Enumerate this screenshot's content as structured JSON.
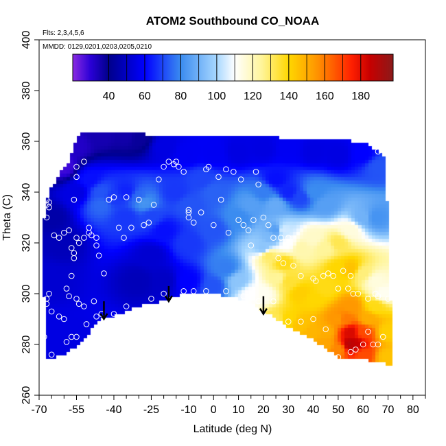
{
  "chart_data": {
    "type": "heatmap",
    "title": "ATOM2 Southbound CO_NOAA",
    "annotations": {
      "flights": "Flts: 2,3,4,5,6",
      "dates": "MMDD: 0129,0201,0203,0205,0210"
    },
    "xlabel": "Latitude (deg N)",
    "ylabel": "Theta (C)",
    "xlim": [
      -70,
      85
    ],
    "ylim": [
      260,
      400
    ],
    "x_ticks": [
      -70,
      -55,
      -40,
      -25,
      -10,
      0,
      10,
      20,
      30,
      40,
      50,
      60,
      70,
      80
    ],
    "x_minor_ticks": [
      -65,
      -60,
      -50,
      -45,
      -35,
      -30,
      -20,
      -15,
      -5,
      5,
      15,
      25,
      35,
      45,
      55,
      65,
      75,
      85
    ],
    "y_ticks": [
      260,
      280,
      300,
      320,
      340,
      360,
      380,
      400
    ],
    "colorbar": {
      "range": [
        20,
        198
      ],
      "ticks": [
        40,
        60,
        80,
        100,
        120,
        140,
        160,
        180
      ],
      "stops": [
        {
          "v": 20,
          "c": "#8a2be2"
        },
        {
          "v": 30,
          "c": "#2a00d6"
        },
        {
          "v": 40,
          "c": "#00008b"
        },
        {
          "v": 60,
          "c": "#0000ff"
        },
        {
          "v": 80,
          "c": "#3b8cf0"
        },
        {
          "v": 100,
          "c": "#a8d8ff"
        },
        {
          "v": 110,
          "c": "#ffffff"
        },
        {
          "v": 125,
          "c": "#fff59a"
        },
        {
          "v": 140,
          "c": "#ffd700"
        },
        {
          "v": 155,
          "c": "#ff9800"
        },
        {
          "v": 175,
          "c": "#ff2000"
        },
        {
          "v": 185,
          "c": "#c80000"
        },
        {
          "v": 198,
          "c": "#8b1a1a"
        }
      ]
    },
    "field_boundary": {
      "top": [
        [
          -66,
          340
        ],
        [
          -62,
          347
        ],
        [
          -58,
          352
        ],
        [
          -55,
          361
        ],
        [
          -54,
          363
        ],
        [
          -50,
          364
        ],
        [
          -40,
          364
        ],
        [
          -30,
          364
        ],
        [
          -25,
          362
        ],
        [
          -10,
          362
        ],
        [
          10,
          362
        ],
        [
          25,
          362
        ],
        [
          27,
          361
        ],
        [
          60,
          360
        ],
        [
          66,
          356
        ],
        [
          69,
          354
        ]
      ],
      "right": [
        [
          69,
          354
        ],
        [
          70,
          330
        ],
        [
          71,
          300
        ],
        [
          72,
          272
        ],
        [
          70,
          272
        ]
      ],
      "bottom": [
        [
          70,
          272
        ],
        [
          60,
          274
        ],
        [
          50,
          275
        ],
        [
          45,
          278
        ],
        [
          40,
          282
        ],
        [
          30,
          287
        ],
        [
          25,
          290
        ],
        [
          20,
          293
        ],
        [
          15,
          296
        ],
        [
          10,
          298
        ],
        [
          5,
          299
        ],
        [
          0,
          300
        ],
        [
          -5,
          300
        ],
        [
          -10,
          300
        ],
        [
          -15,
          299
        ],
        [
          -20,
          297
        ],
        [
          -25,
          296
        ],
        [
          -30,
          295
        ],
        [
          -35,
          293
        ],
        [
          -40,
          291
        ],
        [
          -45,
          290
        ],
        [
          -48,
          287
        ],
        [
          -52,
          282
        ],
        [
          -55,
          279
        ],
        [
          -60,
          276
        ],
        [
          -65,
          274
        ],
        [
          -67,
          275
        ]
      ],
      "left": [
        [
          -67,
          275
        ],
        [
          -68,
          300
        ],
        [
          -68,
          330
        ],
        [
          -66,
          340
        ]
      ]
    },
    "field_anchors": [
      [
        -60,
        350,
        28
      ],
      [
        -55,
        358,
        32
      ],
      [
        -45,
        362,
        35
      ],
      [
        -35,
        362,
        36
      ],
      [
        -30,
        361,
        38
      ],
      [
        -20,
        358,
        55
      ],
      [
        -10,
        355,
        58
      ],
      [
        0,
        355,
        58
      ],
      [
        10,
        356,
        55
      ],
      [
        20,
        357,
        55
      ],
      [
        30,
        357,
        58
      ],
      [
        40,
        356,
        55
      ],
      [
        50,
        355,
        55
      ],
      [
        60,
        355,
        60
      ],
      [
        66,
        350,
        72
      ],
      [
        -65,
        330,
        45
      ],
      [
        -60,
        320,
        48
      ],
      [
        -65,
        305,
        52
      ],
      [
        -60,
        285,
        55
      ],
      [
        -65,
        280,
        55
      ],
      [
        -55,
        340,
        55
      ],
      [
        -50,
        345,
        62
      ],
      [
        -45,
        340,
        72
      ],
      [
        -45,
        335,
        75
      ],
      [
        -40,
        338,
        68
      ],
      [
        -35,
        340,
        65
      ],
      [
        -35,
        330,
        68
      ],
      [
        -30,
        338,
        75
      ],
      [
        -28,
        336,
        82
      ],
      [
        -25,
        330,
        70
      ],
      [
        -20,
        325,
        62
      ],
      [
        -25,
        315,
        52
      ],
      [
        -30,
        305,
        48
      ],
      [
        -20,
        305,
        50
      ],
      [
        -15,
        340,
        68
      ],
      [
        -10,
        335,
        72
      ],
      [
        -10,
        320,
        68
      ],
      [
        -5,
        345,
        70
      ],
      [
        0,
        340,
        74
      ],
      [
        0,
        325,
        72
      ],
      [
        5,
        310,
        78
      ],
      [
        0,
        303,
        72
      ],
      [
        -10,
        305,
        60
      ],
      [
        10,
        330,
        80
      ],
      [
        15,
        335,
        85
      ],
      [
        20,
        340,
        78
      ],
      [
        25,
        335,
        88
      ],
      [
        25,
        345,
        62
      ],
      [
        30,
        340,
        65
      ],
      [
        35,
        338,
        70
      ],
      [
        40,
        340,
        80
      ],
      [
        45,
        335,
        85
      ],
      [
        10,
        305,
        95
      ],
      [
        15,
        300,
        110
      ],
      [
        20,
        300,
        112
      ],
      [
        20,
        318,
        95
      ],
      [
        23,
        322,
        92
      ],
      [
        25,
        325,
        85
      ],
      [
        28,
        325,
        105
      ],
      [
        22,
        315,
        130
      ],
      [
        28,
        312,
        138
      ],
      [
        26,
        306,
        125
      ],
      [
        30,
        320,
        110
      ],
      [
        35,
        318,
        122
      ],
      [
        40,
        322,
        118
      ],
      [
        45,
        318,
        125
      ],
      [
        50,
        320,
        132
      ],
      [
        55,
        325,
        115
      ],
      [
        60,
        330,
        90
      ],
      [
        65,
        330,
        82
      ],
      [
        30,
        305,
        135
      ],
      [
        35,
        300,
        142
      ],
      [
        40,
        298,
        140
      ],
      [
        45,
        302,
        138
      ],
      [
        50,
        310,
        140
      ],
      [
        55,
        310,
        145
      ],
      [
        60,
        308,
        128
      ],
      [
        65,
        305,
        115
      ],
      [
        68,
        300,
        112
      ],
      [
        25,
        290,
        132
      ],
      [
        30,
        290,
        140
      ],
      [
        35,
        288,
        145
      ],
      [
        40,
        285,
        148
      ],
      [
        45,
        285,
        150
      ],
      [
        50,
        290,
        155
      ],
      [
        53,
        290,
        160
      ],
      [
        55,
        285,
        182
      ],
      [
        55,
        280,
        188
      ],
      [
        57,
        280,
        185
      ],
      [
        60,
        285,
        168
      ],
      [
        62,
        290,
        150
      ],
      [
        65,
        295,
        138
      ],
      [
        70,
        285,
        142
      ],
      [
        70,
        275,
        145
      ],
      [
        50,
        278,
        158
      ],
      [
        45,
        280,
        152
      ],
      [
        60,
        276,
        168
      ],
      [
        55,
        295,
        155
      ]
    ],
    "sample_points": [
      [
        -67,
        337
      ],
      [
        -67,
        335
      ],
      [
        -66,
        336
      ],
      [
        -66,
        334
      ],
      [
        -67,
        330
      ],
      [
        -64,
        323
      ],
      [
        -62,
        322
      ],
      [
        -60,
        324
      ],
      [
        -56,
        337
      ],
      [
        -58,
        325
      ],
      [
        -57,
        318
      ],
      [
        -56,
        316
      ],
      [
        -54,
        320
      ],
      [
        -56,
        314
      ],
      [
        -52,
        322
      ],
      [
        -50,
        326
      ],
      [
        -50,
        324
      ],
      [
        -49,
        323
      ],
      [
        -47,
        322
      ],
      [
        -55,
        322
      ],
      [
        -47,
        319
      ],
      [
        -46,
        315
      ],
      [
        -44,
        308
      ],
      [
        -42,
        337
      ],
      [
        -40,
        338
      ],
      [
        -38,
        326
      ],
      [
        -36,
        322
      ],
      [
        -35,
        338
      ],
      [
        -33,
        326
      ],
      [
        -30,
        337
      ],
      [
        -28,
        327
      ],
      [
        -26,
        328
      ],
      [
        -24,
        335
      ],
      [
        -22,
        345
      ],
      [
        -20,
        350
      ],
      [
        -18,
        352
      ],
      [
        -16,
        351
      ],
      [
        -15,
        352
      ],
      [
        -14,
        350
      ],
      [
        -12,
        348
      ],
      [
        -10,
        333
      ],
      [
        -10,
        332
      ],
      [
        -10,
        330
      ],
      [
        -8,
        328
      ],
      [
        -5,
        332
      ],
      [
        -3,
        349
      ],
      [
        -2,
        350
      ],
      [
        0,
        327
      ],
      [
        2,
        346
      ],
      [
        3,
        337
      ],
      [
        5,
        349
      ],
      [
        6,
        324
      ],
      [
        8,
        348
      ],
      [
        10,
        329
      ],
      [
        11,
        345
      ],
      [
        12,
        327
      ],
      [
        14,
        325
      ],
      [
        15,
        319
      ],
      [
        16,
        329
      ],
      [
        17,
        348
      ],
      [
        18,
        343
      ],
      [
        20,
        330
      ],
      [
        22,
        327
      ],
      [
        24,
        322
      ],
      [
        27,
        322
      ],
      [
        30,
        322
      ],
      [
        -55,
        346
      ],
      [
        -52,
        352
      ],
      [
        -55,
        350
      ],
      [
        -57,
        307
      ],
      [
        -59,
        302
      ],
      [
        -58,
        299
      ],
      [
        -55,
        298
      ],
      [
        -54,
        296
      ],
      [
        -52,
        295
      ],
      [
        -48,
        297
      ],
      [
        -60,
        290
      ],
      [
        -62,
        291
      ],
      [
        -65,
        293
      ],
      [
        -67,
        296
      ],
      [
        -67,
        298
      ],
      [
        -66,
        300
      ],
      [
        -45,
        292
      ],
      [
        -40,
        292
      ],
      [
        -35,
        295
      ],
      [
        -25,
        298
      ],
      [
        -20,
        300
      ],
      [
        -12,
        301
      ],
      [
        -8,
        301
      ],
      [
        -3,
        301
      ],
      [
        5,
        301
      ],
      [
        12,
        299
      ],
      [
        18,
        297
      ],
      [
        24,
        297
      ],
      [
        26,
        314
      ],
      [
        28,
        312
      ],
      [
        32,
        311
      ],
      [
        35,
        307
      ],
      [
        40,
        306
      ],
      [
        44,
        307
      ],
      [
        46,
        308
      ],
      [
        48,
        307
      ],
      [
        52,
        309
      ],
      [
        55,
        307
      ],
      [
        56,
        300
      ],
      [
        58,
        300
      ],
      [
        62,
        298
      ],
      [
        65,
        300
      ],
      [
        66,
        299
      ],
      [
        70,
        298
      ],
      [
        30,
        289
      ],
      [
        35,
        289
      ],
      [
        40,
        290
      ],
      [
        45,
        286
      ],
      [
        50,
        275
      ],
      [
        55,
        277
      ],
      [
        57,
        278
      ],
      [
        60,
        280
      ],
      [
        62,
        285
      ],
      [
        64,
        280
      ],
      [
        66,
        280
      ],
      [
        68,
        283
      ],
      [
        41,
        305
      ],
      [
        50,
        302
      ],
      [
        54,
        302
      ],
      [
        66,
        356
      ],
      [
        68,
        357
      ],
      [
        -68,
        283
      ],
      [
        -65,
        276
      ],
      [
        -59,
        281
      ],
      [
        -57,
        283
      ],
      [
        -55,
        283
      ],
      [
        -51,
        288
      ],
      [
        -47,
        291
      ]
    ],
    "arrows": [
      {
        "lat": -44,
        "theta_top": 297,
        "theta_tip": 290
      },
      {
        "lat": -18,
        "theta_top": 303,
        "theta_tip": 297
      },
      {
        "lat": 20,
        "theta_top": 299,
        "theta_tip": 292
      }
    ]
  }
}
